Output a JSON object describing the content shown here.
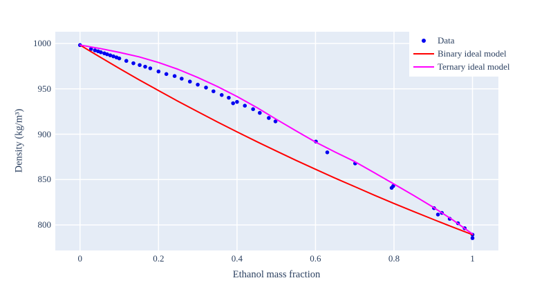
{
  "figure": {
    "background": "#ffffff",
    "plot_background": "#e5ecf6",
    "grid_color": "#ffffff",
    "text_color": "#2a3f5f"
  },
  "chart_data": {
    "type": "scatter",
    "title": "",
    "xlabel": "Ethanol mass fraction",
    "ylabel": "Density (kg/m³)",
    "xlim": [
      -0.063,
      1.066
    ],
    "ylim": [
      771.9,
      1012.9
    ],
    "grid": true,
    "legend_position": "top-right",
    "xticks": {
      "values": [
        0,
        0.2,
        0.4,
        0.6,
        0.8,
        1
      ],
      "labels": [
        "0",
        "0.2",
        "0.4",
        "0.6",
        "0.8",
        "1"
      ]
    },
    "yticks": {
      "values": [
        800,
        850,
        900,
        950,
        1000
      ],
      "labels": [
        "800",
        "850",
        "900",
        "950",
        "1000"
      ]
    },
    "series": [
      {
        "name": "Data",
        "mode": "markers",
        "color": "#0000f0",
        "marker_radius": 2.8,
        "points": [
          [
            0,
            998.2
          ],
          [
            0.028,
            993.9
          ],
          [
            0.038,
            992.4
          ],
          [
            0.046,
            991.4
          ],
          [
            0.053,
            990.3
          ],
          [
            0.062,
            989.1
          ],
          [
            0.069,
            988.1
          ],
          [
            0.077,
            986.9
          ],
          [
            0.085,
            985.8
          ],
          [
            0.093,
            984.6
          ],
          [
            0.1,
            983.5
          ],
          [
            0.118,
            980.8
          ],
          [
            0.136,
            978.2
          ],
          [
            0.152,
            976.2
          ],
          [
            0.166,
            974.4
          ],
          [
            0.179,
            972.6
          ],
          [
            0.2,
            969.1
          ],
          [
            0.22,
            966.3
          ],
          [
            0.241,
            964.1
          ],
          [
            0.259,
            961.2
          ],
          [
            0.28,
            958.0
          ],
          [
            0.3,
            954.6
          ],
          [
            0.321,
            951.4
          ],
          [
            0.34,
            947.3
          ],
          [
            0.361,
            943.2
          ],
          [
            0.379,
            940.2
          ],
          [
            0.39,
            934.1
          ],
          [
            0.4,
            935.6
          ],
          [
            0.42,
            931.4
          ],
          [
            0.441,
            927.6
          ],
          [
            0.458,
            923.5
          ],
          [
            0.481,
            917.9
          ],
          [
            0.498,
            914.1
          ],
          [
            0.601,
            891.9
          ],
          [
            0.63,
            880.0
          ],
          [
            0.701,
            867.8
          ],
          [
            0.794,
            840.9
          ],
          [
            0.798,
            842.9
          ],
          [
            0.902,
            818.5
          ],
          [
            0.912,
            811.5
          ],
          [
            0.922,
            813.3
          ],
          [
            0.942,
            806.8
          ],
          [
            0.963,
            801.9
          ],
          [
            0.98,
            796.4
          ],
          [
            1.0,
            789.3
          ],
          [
            1.0,
            785.5
          ]
        ]
      },
      {
        "name": "Binary ideal model",
        "mode": "line",
        "color": "#ff0000",
        "line_width": 2,
        "points": [
          [
            0,
            998.2
          ],
          [
            0.05,
            985.2
          ],
          [
            0.1,
            972.5
          ],
          [
            0.15,
            960.1
          ],
          [
            0.2,
            948.1
          ],
          [
            0.25,
            936.2
          ],
          [
            0.3,
            924.8
          ],
          [
            0.35,
            913.5
          ],
          [
            0.4,
            902.6
          ],
          [
            0.45,
            891.9
          ],
          [
            0.5,
            881.5
          ],
          [
            0.55,
            871.3
          ],
          [
            0.6,
            861.4
          ],
          [
            0.65,
            851.6
          ],
          [
            0.7,
            842.2
          ],
          [
            0.75,
            832.8
          ],
          [
            0.8,
            823.7
          ],
          [
            0.85,
            814.8
          ],
          [
            0.9,
            806.1
          ],
          [
            0.95,
            797.6
          ],
          [
            1.0,
            789.3
          ]
        ]
      },
      {
        "name": "Ternary ideal model",
        "mode": "line",
        "color": "#ff00ff",
        "line_width": 2,
        "points": [
          [
            0,
            998.2
          ],
          [
            0.05,
            994.5
          ],
          [
            0.1,
            990.2
          ],
          [
            0.15,
            985.3
          ],
          [
            0.2,
            979.0
          ],
          [
            0.25,
            971.5
          ],
          [
            0.3,
            962.5
          ],
          [
            0.35,
            952.5
          ],
          [
            0.4,
            941.5
          ],
          [
            0.45,
            929.5
          ],
          [
            0.5,
            916.5
          ],
          [
            0.55,
            903.8
          ],
          [
            0.6,
            891.3
          ],
          [
            0.65,
            880.3
          ],
          [
            0.7,
            869.8
          ],
          [
            0.75,
            857.5
          ],
          [
            0.8,
            845.0
          ],
          [
            0.85,
            832.5
          ],
          [
            0.9,
            819.5
          ],
          [
            0.95,
            805.5
          ],
          [
            1.0,
            790.0
          ]
        ]
      }
    ]
  }
}
